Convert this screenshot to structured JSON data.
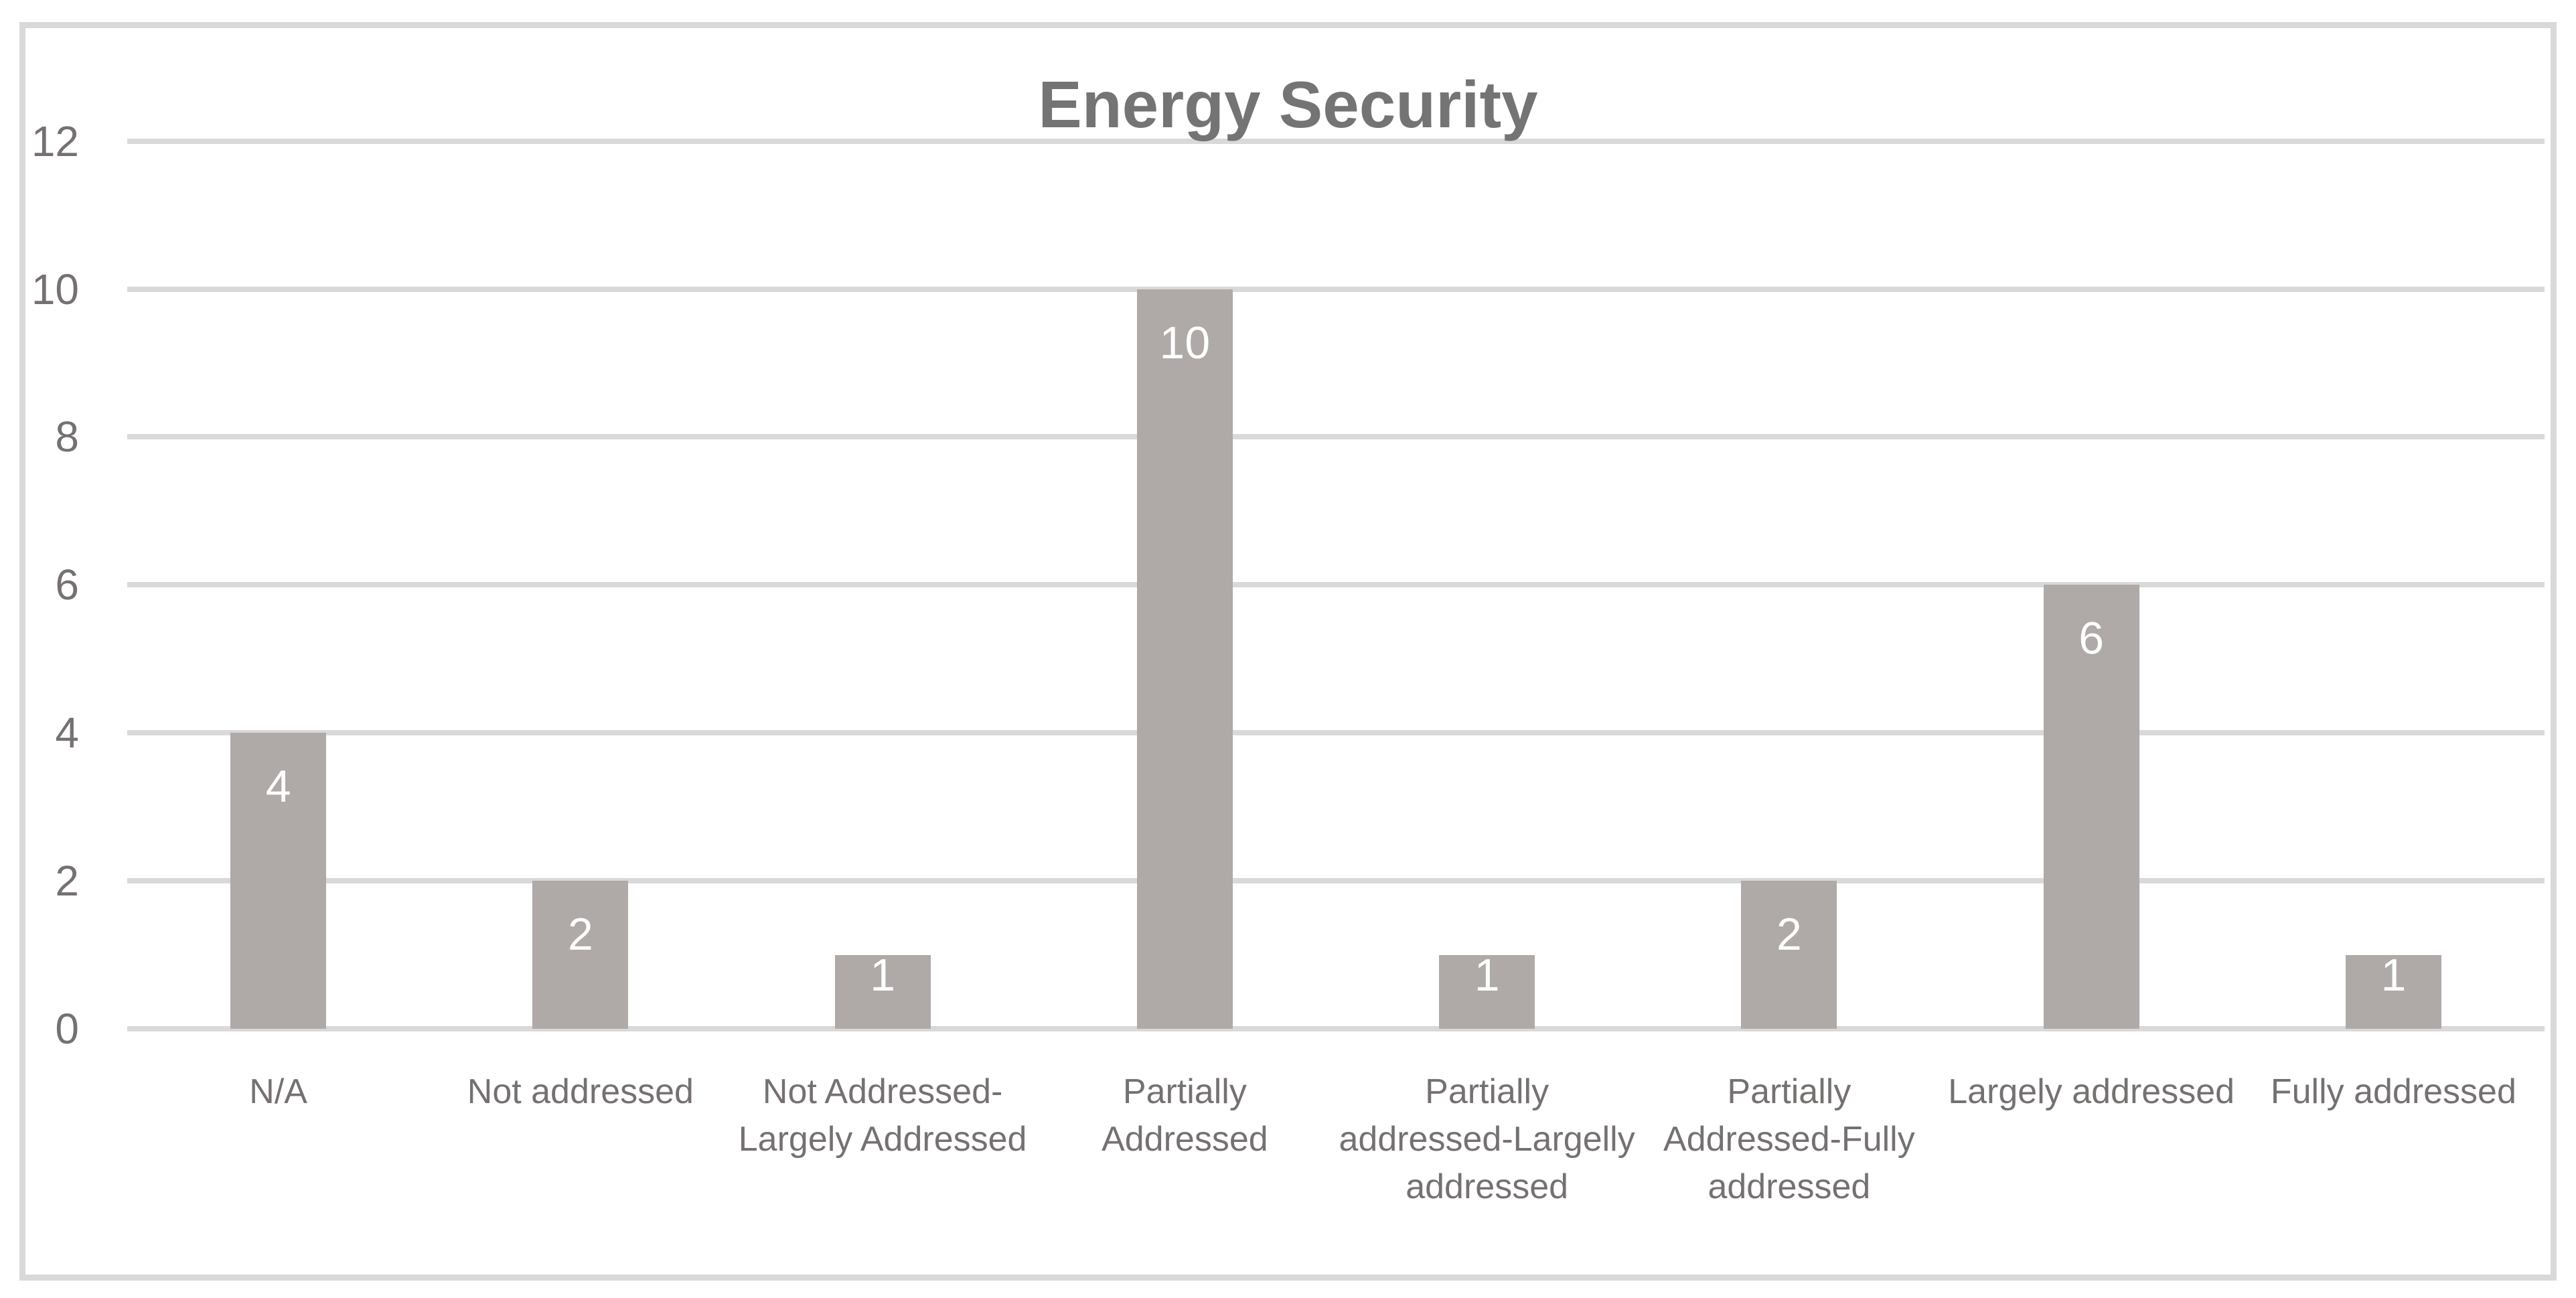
{
  "chart_data": {
    "type": "bar",
    "title": "Energy Security",
    "categories": [
      [
        "N/A"
      ],
      [
        "Not addressed"
      ],
      [
        "Not Addressed-",
        "Largely Addressed"
      ],
      [
        "Partially",
        "Addressed"
      ],
      [
        "Partially",
        "addressed-Largelly",
        "addressed"
      ],
      [
        "Partially",
        "Addressed-Fully",
        "addressed"
      ],
      [
        "Largely addressed"
      ],
      [
        "Fully addressed"
      ]
    ],
    "values": [
      4,
      2,
      1,
      10,
      1,
      2,
      6,
      1
    ],
    "data_labels": [
      4,
      2,
      1,
      10,
      1,
      2,
      6,
      1
    ],
    "data_labels_position": "inside-end",
    "xlabel": "",
    "ylabel": "",
    "y_ticks": [
      0,
      2,
      4,
      6,
      8,
      10,
      12
    ],
    "ylim": [
      0,
      12
    ],
    "grid": "horizontal",
    "legend_position": "none",
    "colors": {
      "bar_fill": "#afa9a7",
      "gridline": "#d9d9d9",
      "frame_border": "#d9d9d9",
      "title_text": "#757474",
      "axis_text": "#767171",
      "value_label_text": "#ffffff",
      "background": "#ffffff"
    }
  }
}
